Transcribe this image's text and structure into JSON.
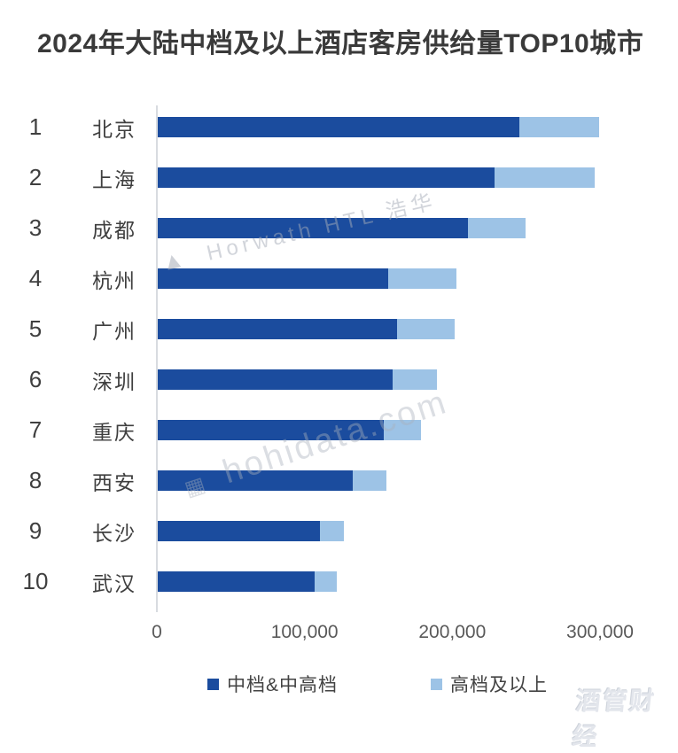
{
  "title": "2024年大陆中档及以上酒店客房供给量TOP10城市",
  "colors": {
    "mid_series": "#1b4c9e",
    "high_series": "#9dc3e6",
    "axis_line": "#d8dbe0",
    "title_text": "#3a3a3a",
    "label_text": "#3f3f3f",
    "tick_text": "#595959"
  },
  "legend": {
    "items": [
      {
        "label": "中档&中高档",
        "color": "#1b4c9e"
      },
      {
        "label": "高档及以上",
        "color": "#9dc3e6"
      }
    ]
  },
  "watermarks": {
    "brand1": "Horwath HTL 浩华",
    "brand2": "hohidata.com",
    "brand3": "酒管财经"
  },
  "chart_data": {
    "type": "bar",
    "orientation": "horizontal",
    "stacked": true,
    "title": "2024年大陆中档及以上酒店客房供给量TOP10城市",
    "ranks": [
      "1",
      "2",
      "3",
      "4",
      "5",
      "6",
      "7",
      "8",
      "9",
      "10"
    ],
    "categories": [
      "北京",
      "上海",
      "成都",
      "杭州",
      "广州",
      "深圳",
      "重庆",
      "西安",
      "长沙",
      "武汉"
    ],
    "series": [
      {
        "name": "中档&中高档",
        "color": "#1b4c9e",
        "values": [
          245000,
          228000,
          210000,
          156000,
          162000,
          159000,
          153000,
          132000,
          110000,
          106000
        ]
      },
      {
        "name": "高档及以上",
        "color": "#9dc3e6",
        "values": [
          54000,
          68000,
          39000,
          46000,
          39000,
          30000,
          25000,
          23000,
          16000,
          15000
        ]
      }
    ],
    "totals": [
      299000,
      296000,
      249000,
      202000,
      201000,
      189000,
      178000,
      155000,
      126000,
      121000
    ],
    "x_ticks": [
      "0",
      "100,000",
      "200,000",
      "300,000"
    ],
    "x_tick_values": [
      0,
      100000,
      200000,
      300000
    ],
    "xlim": [
      0,
      300000
    ],
    "xlabel": "",
    "ylabel": "",
    "grid": false,
    "legend_position": "bottom"
  }
}
